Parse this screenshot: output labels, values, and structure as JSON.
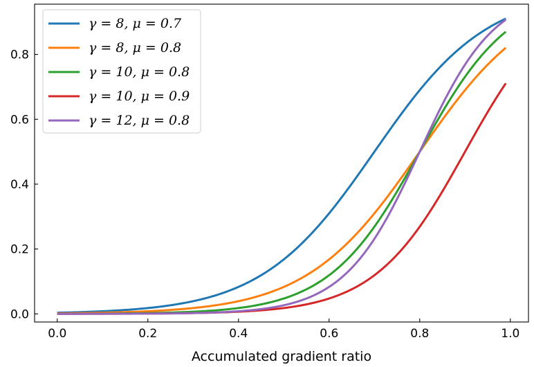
{
  "chart_data": {
    "type": "line",
    "title": "",
    "xlabel": "Accumulated gradient ratio",
    "ylabel": "",
    "xlim": [
      -0.05,
      1.04
    ],
    "ylim": [
      -0.025,
      0.955
    ],
    "xticks": [
      0.0,
      0.2,
      0.4,
      0.6,
      0.8,
      1.0
    ],
    "xtick_labels": [
      "0.0",
      "0.2",
      "0.4",
      "0.6",
      "0.8",
      "1.0"
    ],
    "yticks": [
      0.0,
      0.2,
      0.4,
      0.6,
      0.8
    ],
    "ytick_labels": [
      "0.0",
      "0.2",
      "0.4",
      "0.6",
      "0.8"
    ],
    "grid": false,
    "legend_position": "top-left",
    "x_range": [
      0.0,
      0.99
    ],
    "series": [
      {
        "name": "γ = 8, μ = 0.7",
        "gamma": 8,
        "mu": 0.7,
        "color": "#1f77b4"
      },
      {
        "name": "γ = 8, μ = 0.8",
        "gamma": 8,
        "mu": 0.8,
        "color": "#ff7f0e"
      },
      {
        "name": "γ = 10, μ = 0.8",
        "gamma": 10,
        "mu": 0.8,
        "color": "#2ca02c"
      },
      {
        "name": "γ = 10, μ = 0.9",
        "gamma": 10,
        "mu": 0.9,
        "color": "#d62728"
      },
      {
        "name": "γ = 12, μ = 0.8",
        "gamma": 12,
        "mu": 0.8,
        "color": "#9467bd"
      }
    ]
  }
}
